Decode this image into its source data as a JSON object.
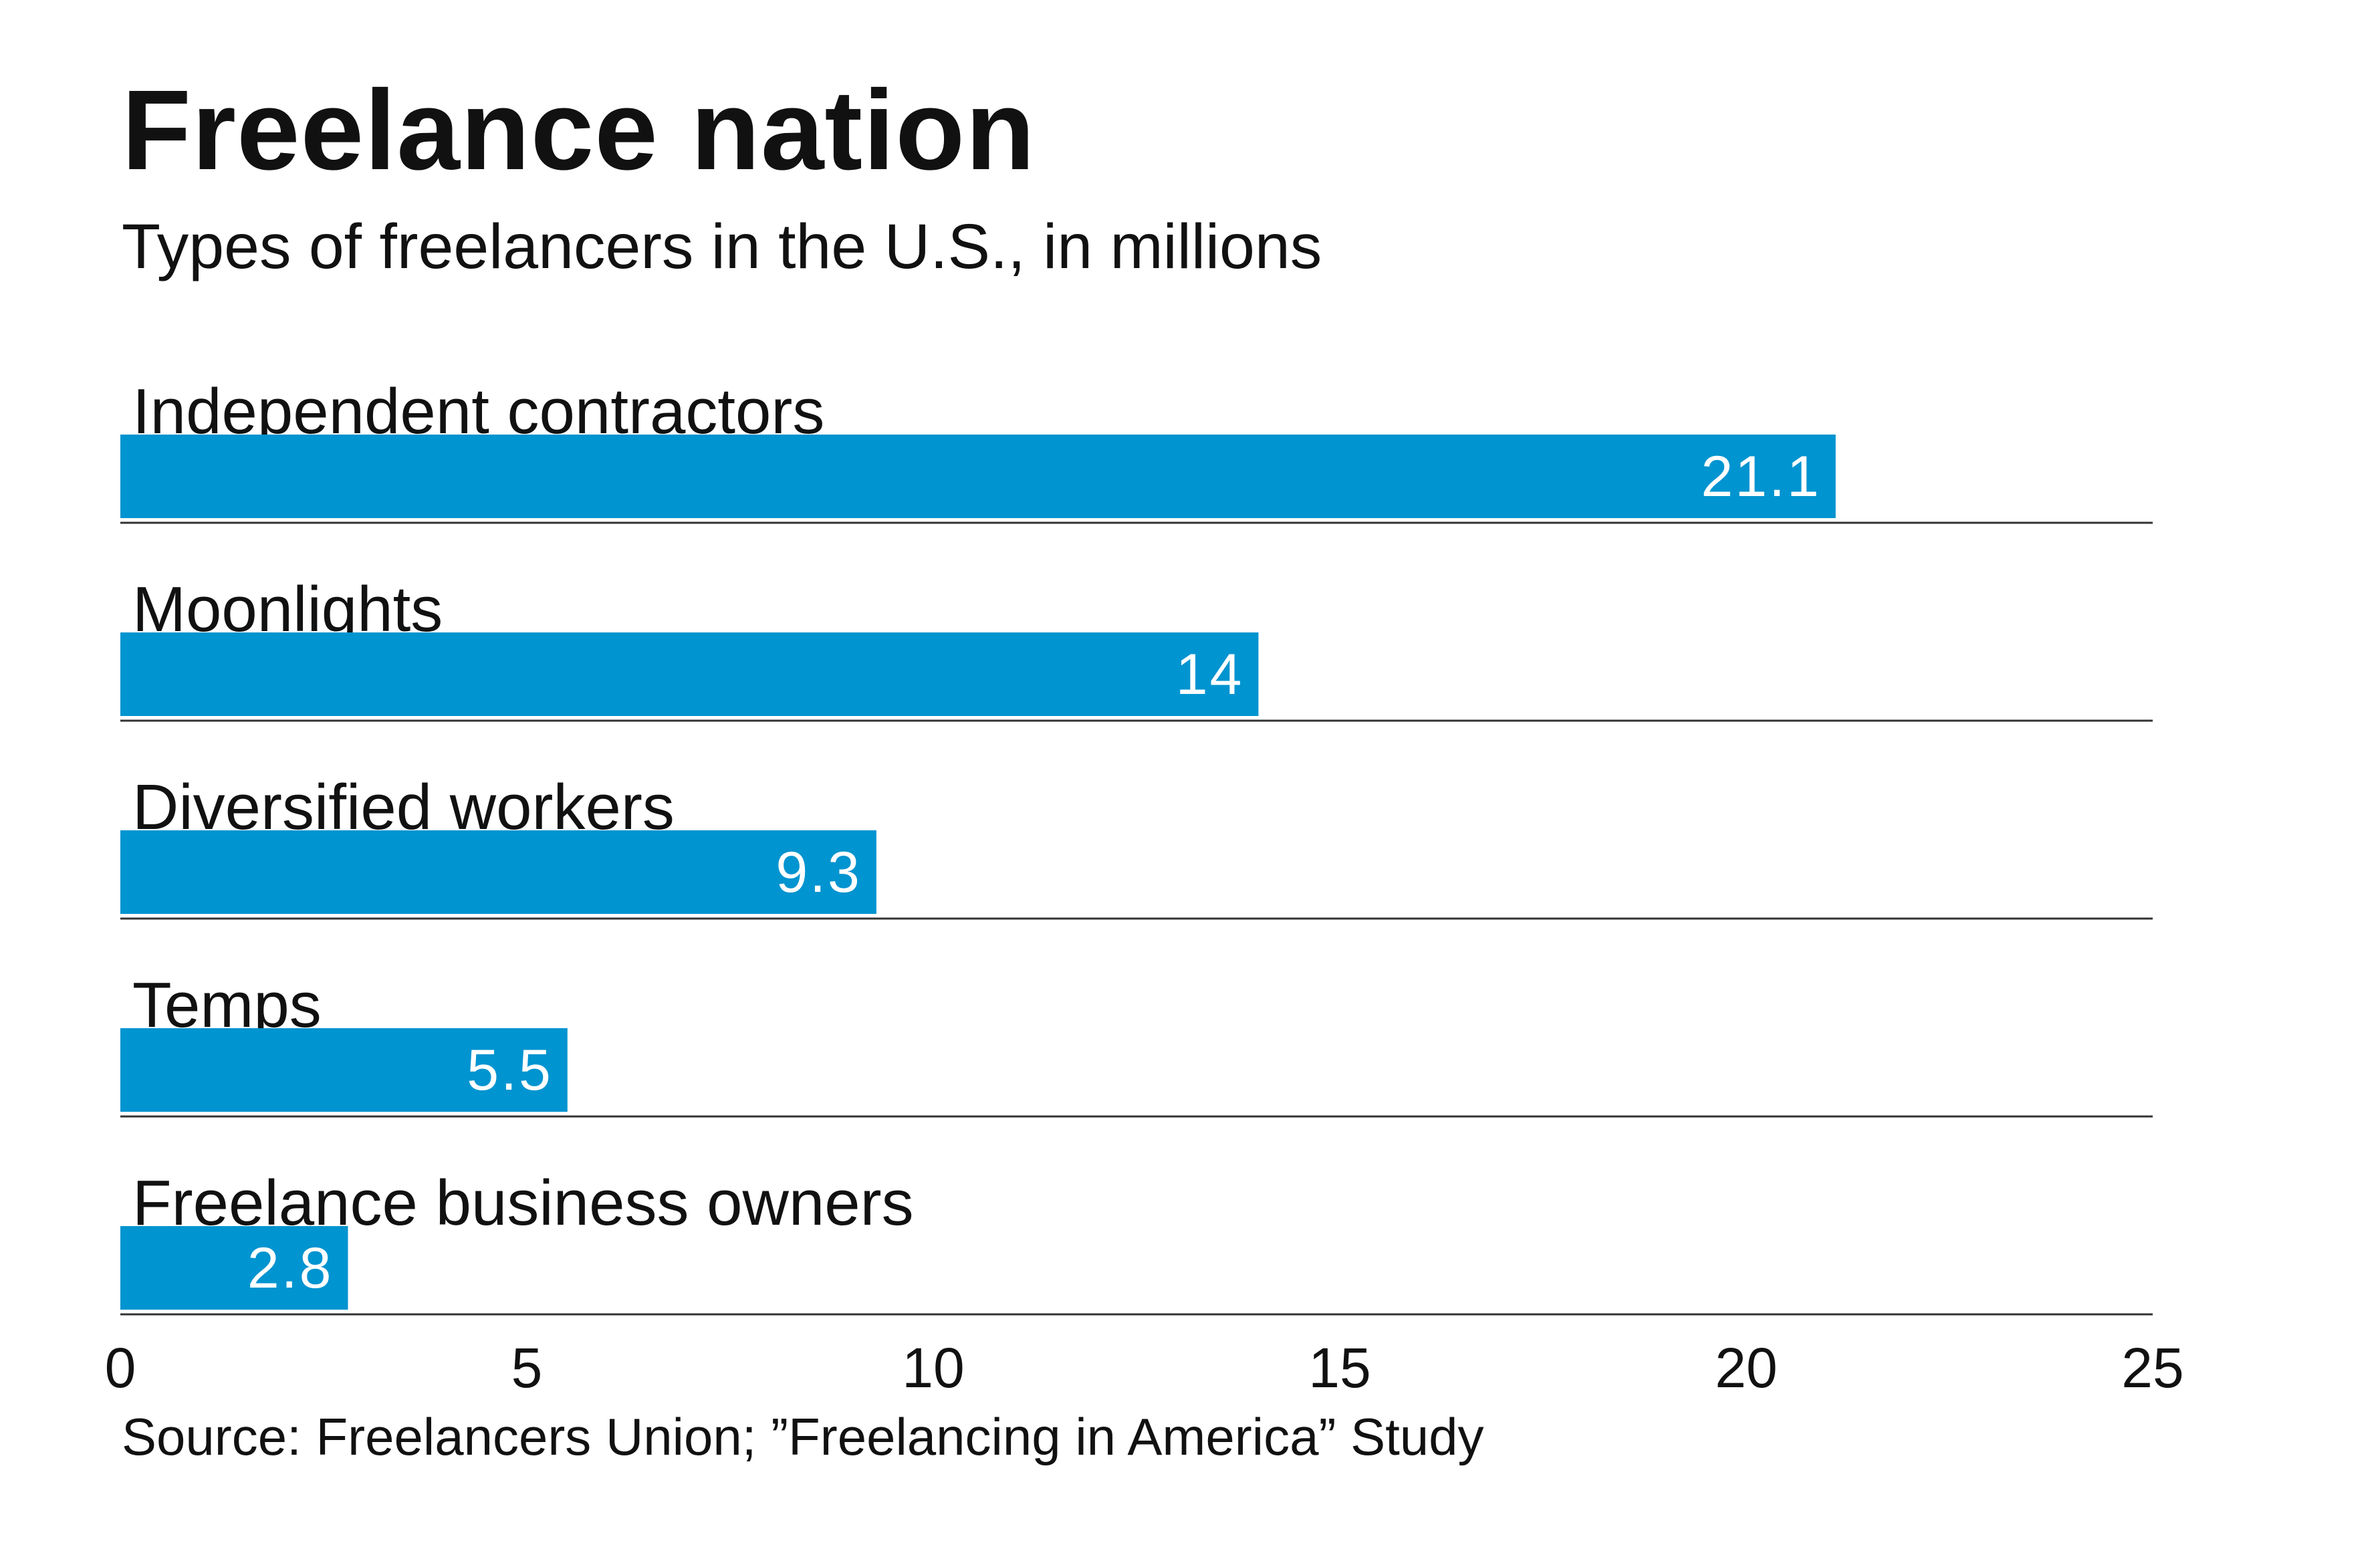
{
  "chart_data": {
    "type": "bar",
    "orientation": "horizontal",
    "title": "Freelance nation",
    "subtitle": "Types of freelancers in the U.S., in millions",
    "categories": [
      "Independent contractors",
      "Moonlights",
      "Diversified workers",
      "Temps",
      "Freelance business owners"
    ],
    "values": [
      21.1,
      14,
      9.3,
      5.5,
      2.8
    ],
    "value_labels": [
      "21.1",
      "14",
      "9.3",
      "5.5",
      "2.8"
    ],
    "xlim": [
      0,
      25
    ],
    "x_ticks": [
      0,
      5,
      10,
      15,
      20,
      25
    ],
    "x_tick_labels": [
      "0",
      "5",
      "10",
      "15",
      "20",
      "25"
    ],
    "grid": false,
    "bar_color": "#0094D0",
    "label_color": "#ffffff",
    "source": "Source: Freelancers Union; ”Freelancing in America” Study"
  }
}
